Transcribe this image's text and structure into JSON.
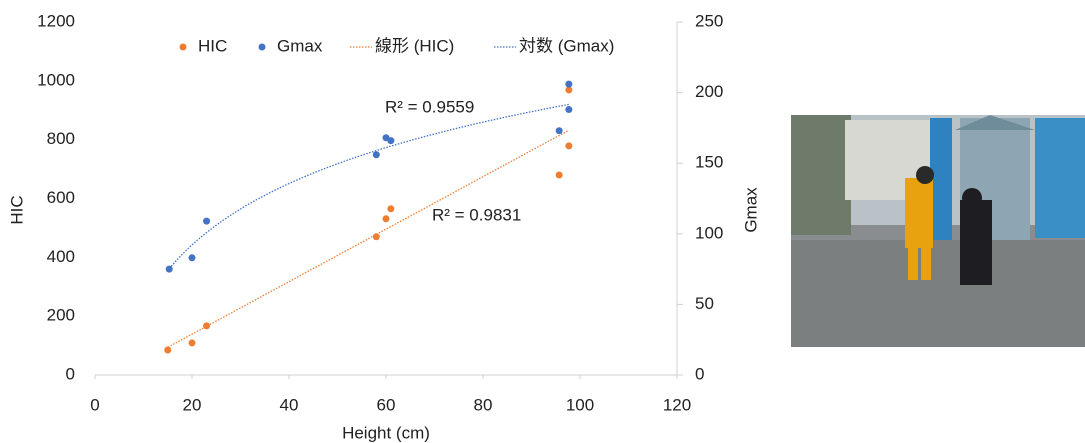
{
  "chart_data": {
    "type": "scatter",
    "x_label": "Height (cm)",
    "y_label": "HIC",
    "y2_label": "Gmax",
    "series": [
      {
        "name": "HIC",
        "color": "#ed7d31",
        "x": [
          15,
          20,
          23,
          58,
          60,
          61,
          95.7,
          97.7,
          97.7
        ],
        "values": [
          85,
          109,
          167,
          470,
          531,
          565,
          680,
          779,
          969
        ]
      },
      {
        "name": "Gmax",
        "color": "#4472c4",
        "axis": "y2",
        "x": [
          15.3,
          20,
          23,
          58,
          60,
          61,
          95.7,
          97.7,
          97.7
        ],
        "values": [
          75,
          83,
          109,
          156,
          168,
          166,
          173,
          206,
          188
        ]
      }
    ],
    "trendlines": [
      {
        "name": "線形 (HIC)",
        "kind": "linear",
        "series": 0,
        "color": "#ed7d31"
      },
      {
        "name": "対数 (Gmax)",
        "kind": "log",
        "series": 1,
        "color": "#4472c4"
      }
    ],
    "annotations": [
      "R² = 0.9559",
      "R² = 0.9831"
    ],
    "xlim": [
      0,
      120
    ],
    "xticks": [
      0,
      20,
      40,
      60,
      80,
      100,
      120
    ],
    "ylim": [
      0,
      1200
    ],
    "yticks": [
      0,
      200,
      400,
      600,
      800,
      1000,
      1200
    ],
    "y2lim": [
      0,
      250
    ],
    "y2ticks": [
      0,
      50,
      100,
      150,
      200,
      250
    ],
    "legend": "top"
  }
}
